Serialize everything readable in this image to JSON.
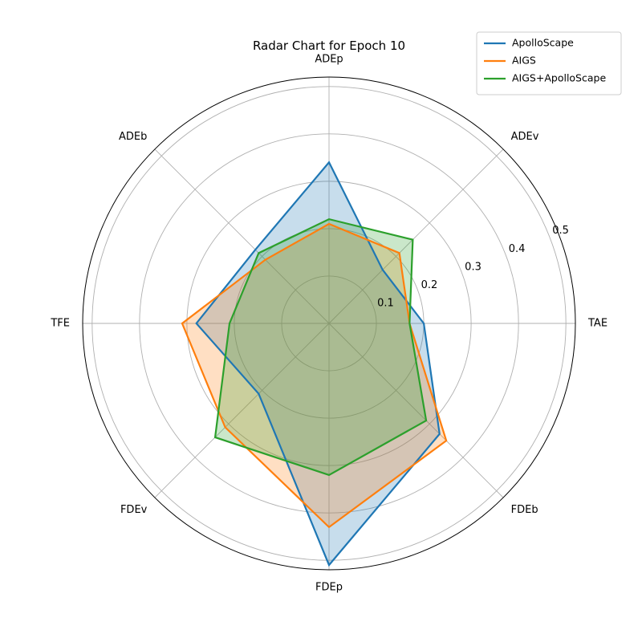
{
  "chart_data": {
    "type": "radar",
    "title": "Radar Chart for Epoch 10",
    "axes": [
      "TAE",
      "ADEv",
      "ADEp",
      "ADEb",
      "TFE",
      "FDEv",
      "FDEp",
      "FDEb"
    ],
    "rlim": [
      0,
      0.52
    ],
    "rticks": [
      0.1,
      0.2,
      0.3,
      0.4,
      0.5
    ],
    "rtick_labels": [
      "0.1",
      "0.2",
      "0.3",
      "0.4",
      "0.5"
    ],
    "grid": true,
    "legend_position": "top-right",
    "series": [
      {
        "name": "ApolloScape",
        "color": "#1f77b4",
        "values": [
          0.2,
          0.16,
          0.34,
          0.22,
          0.28,
          0.21,
          0.51,
          0.33
        ]
      },
      {
        "name": "AIGS",
        "color": "#ff7f0e",
        "values": [
          0.17,
          0.21,
          0.21,
          0.19,
          0.31,
          0.31,
          0.43,
          0.35
        ]
      },
      {
        "name": "AIGS+ApolloScape",
        "color": "#2ca02c",
        "values": [
          0.17,
          0.25,
          0.22,
          0.21,
          0.21,
          0.34,
          0.32,
          0.29
        ]
      }
    ]
  }
}
